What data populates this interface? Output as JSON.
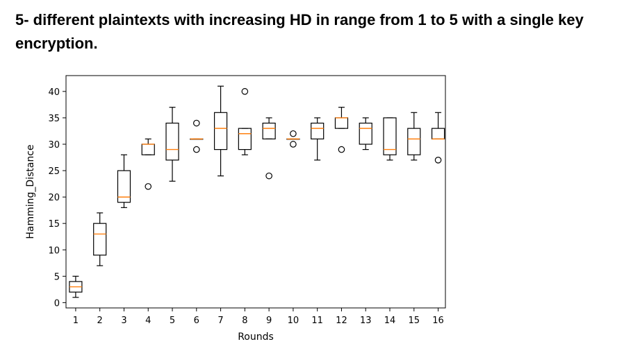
{
  "heading": "5- different plaintexts with increasing HD in range from 1 to 5 with a single key encryption.",
  "chart_data": {
    "type": "boxplot",
    "title": "",
    "xlabel": "Rounds",
    "ylabel": "Hamming_Distance",
    "ylim": [
      -1,
      43
    ],
    "yticks": [
      0,
      5,
      10,
      15,
      20,
      25,
      30,
      35,
      40
    ],
    "categories": [
      "1",
      "2",
      "3",
      "4",
      "5",
      "6",
      "7",
      "8",
      "9",
      "10",
      "11",
      "12",
      "13",
      "14",
      "15",
      "16"
    ],
    "grid": false,
    "colors": {
      "box": "#000000",
      "median": "#ff7f0e",
      "flier": "#000000"
    },
    "boxes": [
      {
        "x": "1",
        "whisker_low": 1,
        "q1": 2,
        "median": 3,
        "q3": 4,
        "whisker_high": 5,
        "outliers": []
      },
      {
        "x": "2",
        "whisker_low": 7,
        "q1": 9,
        "median": 13,
        "q3": 15,
        "whisker_high": 17,
        "outliers": []
      },
      {
        "x": "3",
        "whisker_low": 18,
        "q1": 19,
        "median": 20,
        "q3": 25,
        "whisker_high": 28,
        "outliers": []
      },
      {
        "x": "4",
        "whisker_low": 28,
        "q1": 28,
        "median": 30,
        "q3": 30,
        "whisker_high": 31,
        "outliers": [
          22
        ]
      },
      {
        "x": "5",
        "whisker_low": 23,
        "q1": 27,
        "median": 29,
        "q3": 34,
        "whisker_high": 37,
        "outliers": []
      },
      {
        "x": "6",
        "whisker_low": 31,
        "q1": 31,
        "median": 31,
        "q3": 31,
        "whisker_high": 31,
        "outliers": [
          34,
          29
        ]
      },
      {
        "x": "7",
        "whisker_low": 24,
        "q1": 29,
        "median": 33,
        "q3": 36,
        "whisker_high": 41,
        "outliers": []
      },
      {
        "x": "8",
        "whisker_low": 28,
        "q1": 29,
        "median": 32,
        "q3": 33,
        "whisker_high": 33,
        "outliers": [
          40
        ]
      },
      {
        "x": "9",
        "whisker_low": 31,
        "q1": 31,
        "median": 33,
        "q3": 34,
        "whisker_high": 35,
        "outliers": [
          24
        ]
      },
      {
        "x": "10",
        "whisker_low": 31,
        "q1": 31,
        "median": 31,
        "q3": 31,
        "whisker_high": 31,
        "outliers": [
          32,
          30
        ]
      },
      {
        "x": "11",
        "whisker_low": 27,
        "q1": 31,
        "median": 33,
        "q3": 34,
        "whisker_high": 35,
        "outliers": []
      },
      {
        "x": "12",
        "whisker_low": 33,
        "q1": 33,
        "median": 35,
        "q3": 35,
        "whisker_high": 37,
        "outliers": [
          29
        ]
      },
      {
        "x": "13",
        "whisker_low": 29,
        "q1": 30,
        "median": 33,
        "q3": 34,
        "whisker_high": 35,
        "outliers": []
      },
      {
        "x": "14",
        "whisker_low": 27,
        "q1": 28,
        "median": 29,
        "q3": 35,
        "whisker_high": 35,
        "outliers": []
      },
      {
        "x": "15",
        "whisker_low": 27,
        "q1": 28,
        "median": 31,
        "q3": 33,
        "whisker_high": 36,
        "outliers": []
      },
      {
        "x": "16",
        "whisker_low": 31,
        "q1": 31,
        "median": 31,
        "q3": 33,
        "whisker_high": 36,
        "outliers": [
          27
        ]
      }
    ]
  }
}
